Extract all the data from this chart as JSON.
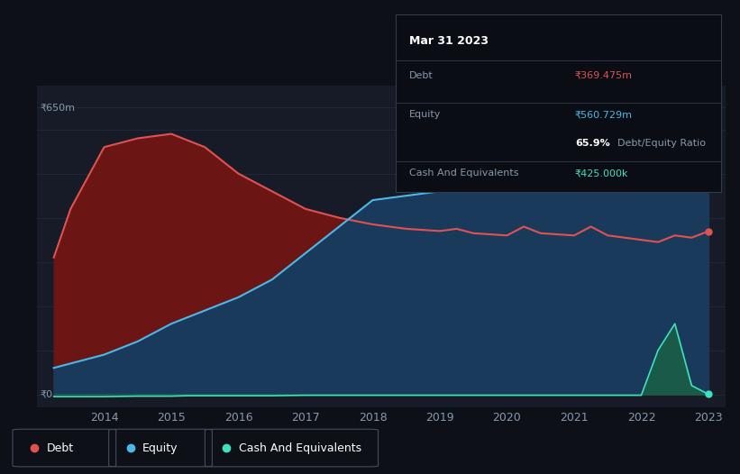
{
  "bg_color": "#0d1117",
  "plot_bg_color": "#161b27",
  "info_box": {
    "date": "Mar 31 2023",
    "debt_label": "Debt",
    "debt_value": "₹369.475m",
    "equity_label": "Equity",
    "equity_value": "₹560.729m",
    "ratio": "65.9%",
    "ratio_label": "Debt/Equity Ratio",
    "cash_label": "Cash And Equivalents",
    "cash_value": "₹425.000k"
  },
  "y_label_top": "₹650m",
  "y_label_zero": "₹0",
  "years": [
    2013.25,
    2013.5,
    2014.0,
    2014.5,
    2015.0,
    2015.25,
    2015.5,
    2016.0,
    2016.5,
    2017.0,
    2017.5,
    2018.0,
    2018.25,
    2018.5,
    2019.0,
    2019.25,
    2019.5,
    2020.0,
    2020.25,
    2020.5,
    2021.0,
    2021.25,
    2021.5,
    2022.0,
    2022.25,
    2022.5,
    2022.75,
    2023.0
  ],
  "debt": [
    310,
    420,
    560,
    580,
    590,
    575,
    560,
    500,
    460,
    420,
    400,
    385,
    380,
    375,
    370,
    375,
    365,
    360,
    380,
    365,
    360,
    380,
    360,
    350,
    345,
    360,
    355,
    369.475
  ],
  "equity": [
    60,
    70,
    90,
    120,
    160,
    175,
    190,
    220,
    260,
    320,
    380,
    440,
    445,
    450,
    460,
    465,
    470,
    475,
    480,
    490,
    495,
    490,
    510,
    530,
    545,
    560,
    570,
    560.729
  ],
  "cash": [
    -5,
    -5,
    -5,
    -4,
    -4,
    -3,
    -3,
    -3,
    -3,
    -2,
    -2,
    -2,
    -2,
    -2,
    -2,
    -2,
    -2,
    -2,
    -2,
    -2,
    -2,
    -2,
    -2,
    -2,
    100,
    160,
    20,
    0.425
  ],
  "debt_color": "#e05252",
  "debt_fill": "#6b1515",
  "equity_color": "#4db8e8",
  "equity_fill": "#1a3a5c",
  "cash_color": "#40e0c0",
  "cash_fill_pos": "#1a5a48",
  "grid_color": "#252d3d",
  "ylim_max": 700,
  "ylim_min": -30,
  "legend_items": [
    "Debt",
    "Equity",
    "Cash And Equivalents"
  ]
}
